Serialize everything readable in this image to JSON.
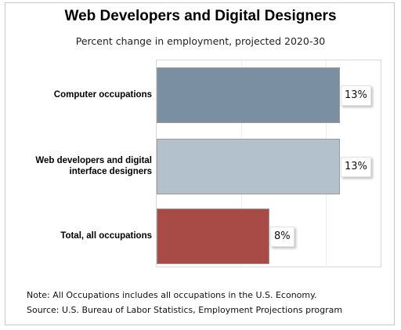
{
  "chart_data": {
    "type": "bar",
    "orientation": "horizontal",
    "title": "Web Developers and Digital Designers",
    "subtitle": "Percent change in employment, projected 2020-30",
    "categories": [
      "Computer occupations",
      "Web developers and digital interface designers",
      "Total, all occupations"
    ],
    "category_lines": [
      [
        "Computer occupations"
      ],
      [
        "Web developers and digital",
        "interface designers"
      ],
      [
        "Total, all occupations"
      ]
    ],
    "values": [
      13,
      13,
      8
    ],
    "value_labels": [
      "13%",
      "13%",
      "8%"
    ],
    "bar_colors": [
      "#7b8fa3",
      "#b3c1cd",
      "#a84a46"
    ],
    "xlim": [
      0,
      16
    ],
    "grid": true,
    "notes": [
      "Note: All Occupations includes all occupations in the U.S. Economy.",
      "Source: U.S. Bureau of Labor Statistics, Employment Projections program"
    ]
  }
}
